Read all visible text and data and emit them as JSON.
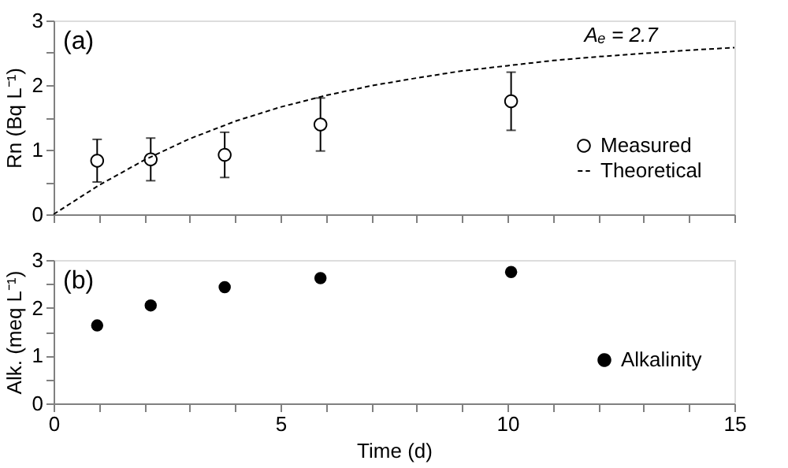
{
  "chart_data": [
    {
      "type": "scatter",
      "ylabel": "Rn (Bq L⁻¹)",
      "xlim": [
        0,
        15
      ],
      "ylim": [
        0,
        3
      ],
      "xticks": [
        {
          "value": 0,
          "label": null
        },
        {
          "value": 1,
          "label": null
        },
        {
          "value": 2,
          "label": null
        },
        {
          "value": 3,
          "label": null
        },
        {
          "value": 4,
          "label": null
        },
        {
          "value": 5,
          "label": null
        },
        {
          "value": 6,
          "label": null
        },
        {
          "value": 7,
          "label": null
        },
        {
          "value": 8,
          "label": null
        },
        {
          "value": 9,
          "label": null
        },
        {
          "value": 10,
          "label": null
        },
        {
          "value": 11,
          "label": null
        },
        {
          "value": 12,
          "label": null
        },
        {
          "value": 13,
          "label": null
        },
        {
          "value": 14,
          "label": null
        },
        {
          "value": 15,
          "label": null
        }
      ],
      "yticks": [
        0,
        {
          "value": 0.5,
          "label": null
        },
        1,
        {
          "value": 1.5,
          "label": null
        },
        2,
        {
          "value": 2.5,
          "label": null
        },
        3
      ],
      "tick_labels": "y",
      "grid": false,
      "legend": "bottom right",
      "annotations": [
        "(a)",
        {
          "text": "Aₑ = 2.7",
          "x": 12.5,
          "y": 2.5
        }
      ],
      "series": [
        {
          "name": "Measured",
          "type": "scatter",
          "marker": "circle",
          "color": "#000000",
          "x": [
            0.96,
            2.14,
            3.77,
            5.88,
            10.08
          ],
          "values": [
            0.83,
            0.85,
            0.92,
            1.39,
            1.75
          ],
          "errors": [
            0.33,
            0.33,
            0.35,
            0.41,
            0.45
          ]
        },
        {
          "name": "Theoretical",
          "type": "line",
          "line_style": "dashed",
          "color": "#000000",
          "x": [
            0,
            1,
            2,
            3,
            4,
            5,
            6,
            7,
            8,
            9,
            10,
            11,
            12,
            13,
            14,
            15
          ],
          "values": [
            0,
            0.45,
            0.84,
            1.17,
            1.44,
            1.66,
            1.84,
            1.99,
            2.11,
            2.22,
            2.3,
            2.38,
            2.44,
            2.49,
            2.54,
            2.58
          ]
        }
      ]
    },
    {
      "type": "scatter",
      "xlabel": "Time (d)",
      "ylabel": "Alk. (meq L⁻¹)",
      "xlim": [
        0,
        15
      ],
      "ylim": [
        0,
        3
      ],
      "xticks": [
        0,
        {
          "value": 1,
          "label": null
        },
        {
          "value": 2,
          "label": null
        },
        {
          "value": 3,
          "label": null
        },
        {
          "value": 4,
          "label": null
        },
        5,
        {
          "value": 6,
          "label": null
        },
        {
          "value": 7,
          "label": null
        },
        {
          "value": 8,
          "label": null
        },
        {
          "value": 9,
          "label": null
        },
        10,
        {
          "value": 11,
          "label": null
        },
        {
          "value": 12,
          "label": null
        },
        {
          "value": 13,
          "label": null
        },
        {
          "value": 14,
          "label": null
        },
        15
      ],
      "yticks": [
        0,
        {
          "value": 0.5,
          "label": null
        },
        1,
        {
          "value": 1.5,
          "label": null
        },
        2,
        {
          "value": 2.5,
          "label": null
        },
        3
      ],
      "grid": false,
      "legend": "bottom right",
      "annotations": [
        "(b)"
      ],
      "series": [
        {
          "name": "Alkalinity",
          "type": "scatter",
          "marker": "circle",
          "color": "#000000",
          "x": [
            0.96,
            2.14,
            3.77,
            5.88,
            10.08
          ],
          "values": [
            1.63,
            2.05,
            2.43,
            2.62,
            2.75
          ]
        }
      ]
    }
  ]
}
